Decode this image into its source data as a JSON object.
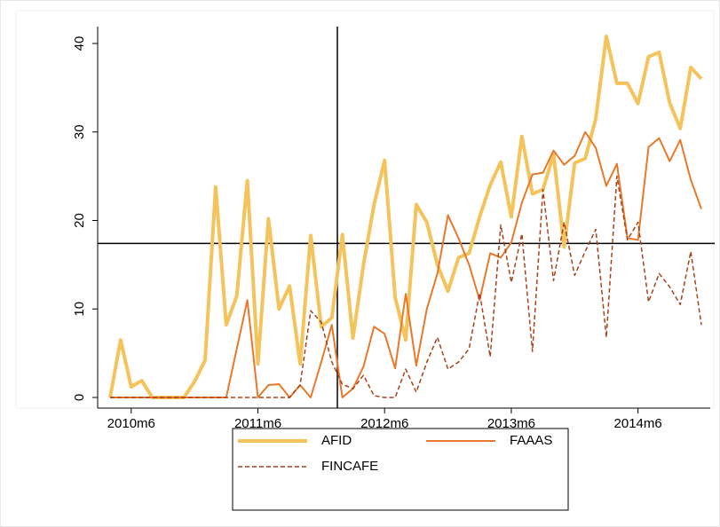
{
  "chart_data": {
    "type": "line",
    "categories": [
      null,
      null,
      "2010m6",
      null,
      null,
      null,
      null,
      null,
      null,
      null,
      null,
      null,
      null,
      null,
      "2011m6",
      null,
      null,
      null,
      null,
      null,
      null,
      null,
      null,
      null,
      null,
      null,
      "2012m6",
      null,
      null,
      null,
      null,
      null,
      null,
      null,
      null,
      null,
      null,
      null,
      "2013m6",
      null,
      null,
      null,
      null,
      null,
      null,
      null,
      null,
      null,
      null,
      null,
      "2014m6",
      null,
      null,
      null,
      null,
      null,
      null
    ],
    "series": [
      {
        "name": "AFID",
        "color": "#f5c35c",
        "width": 4,
        "dash": false,
        "values": [
          0,
          6.5,
          1.2,
          1.9,
          0,
          0,
          0,
          0,
          1.8,
          4.2,
          23.8,
          8.2,
          11.5,
          24.5,
          3.8,
          20.2,
          10,
          12.6,
          3.8,
          18.3,
          8,
          9,
          18.4,
          6.7,
          15,
          21.8,
          26.8,
          11.3,
          6.5,
          21.8,
          19.8,
          15,
          12,
          15.8,
          16.3,
          20.4,
          24,
          26.6,
          20.4,
          29.5,
          23,
          23.5,
          27.5,
          17,
          26.5,
          27,
          31.5,
          40.8,
          35.5,
          35.5,
          33.2,
          38.5,
          39,
          33.3,
          30.4,
          37.3,
          36
        ]
      },
      {
        "name": "FAAAS",
        "color": "#e8782a",
        "width": 2,
        "dash": false,
        "values": [
          0,
          0,
          0,
          0,
          0,
          0,
          0,
          0,
          0,
          0,
          0,
          0,
          5.5,
          11,
          0,
          1.4,
          1.5,
          0,
          1.4,
          0,
          4,
          8.2,
          0,
          1,
          3.5,
          8,
          7.2,
          3.3,
          11.7,
          3.6,
          10,
          14,
          20.6,
          18,
          15,
          11,
          16.3,
          15.8,
          17.5,
          22,
          25.2,
          25.4,
          27.9,
          26.3,
          27.3,
          30,
          28.2,
          23.9,
          26.4,
          18,
          17.8,
          28.3,
          29.3,
          26.7,
          29.1,
          24.6,
          21.3
        ]
      },
      {
        "name": "FINCAFE",
        "color": "#a8421c",
        "width": 1.5,
        "dash": true,
        "values": [
          0,
          0,
          0,
          0,
          0,
          0,
          0,
          0,
          0,
          0,
          0,
          0,
          0,
          0,
          0,
          0,
          0,
          0,
          1.4,
          9.8,
          8.5,
          4,
          1.5,
          1,
          2.5,
          0.2,
          0,
          0,
          3.2,
          0.6,
          4,
          6.8,
          3.2,
          4,
          5.5,
          11.8,
          4.6,
          19.5,
          13,
          18.5,
          5.2,
          23.5,
          13.2,
          19.8,
          13.8,
          16.5,
          19,
          6.8,
          25,
          17.8,
          19.8,
          10.8,
          14,
          12.5,
          10.5,
          16.5,
          8.2
        ]
      }
    ],
    "ylim": [
      0,
      40
    ],
    "yticks": [
      0,
      10,
      20,
      30,
      40
    ],
    "yline": 17.4,
    "grid": false
  }
}
